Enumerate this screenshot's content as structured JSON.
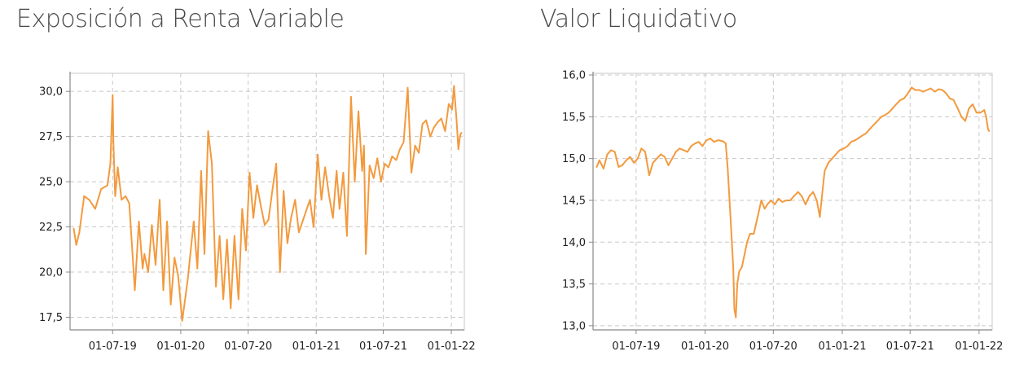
{
  "colors": {
    "line": "#f39a3e",
    "grid": "#c8c8c8",
    "axis": "#888888",
    "text": "#222222"
  },
  "chart_data": [
    {
      "type": "line",
      "title": "Exposición a Renta Variable",
      "xlabel": "",
      "ylabel": "",
      "x_tick_labels": [
        "01-07-19",
        "01-01-20",
        "01-07-20",
        "01-01-21",
        "01-07-21",
        "01-01-22"
      ],
      "y_tick_labels": [
        "17,5",
        "20,0",
        "22,5",
        "25,0",
        "27,5",
        "30,0"
      ],
      "ylim": [
        16.8,
        31.0
      ],
      "grid": true,
      "series": [
        {
          "x": [
            "2019-03-18",
            "2019-03-25",
            "2019-04-02",
            "2019-04-15",
            "2019-04-29",
            "2019-05-15",
            "2019-05-31",
            "2019-06-17",
            "2019-06-25",
            "2019-07-01",
            "2019-07-03",
            "2019-07-08",
            "2019-07-15",
            "2019-07-25",
            "2019-08-05",
            "2019-08-15",
            "2019-08-30",
            "2019-09-10",
            "2019-09-20",
            "2019-09-25",
            "2019-10-05",
            "2019-10-15",
            "2019-10-25",
            "2019-11-05",
            "2019-11-15",
            "2019-11-25",
            "2019-12-05",
            "2019-12-15",
            "2019-12-25",
            "2020-01-05",
            "2020-01-20",
            "2020-02-05",
            "2020-02-15",
            "2020-02-25",
            "2020-03-05",
            "2020-03-15",
            "2020-03-25",
            "2020-04-05",
            "2020-04-15",
            "2020-04-25",
            "2020-05-05",
            "2020-05-15",
            "2020-05-25",
            "2020-06-05",
            "2020-06-15",
            "2020-06-25",
            "2020-07-05",
            "2020-07-15",
            "2020-07-25",
            "2020-08-05",
            "2020-08-15",
            "2020-08-25",
            "2020-09-05",
            "2020-09-15",
            "2020-09-25",
            "2020-10-05",
            "2020-10-15",
            "2020-10-25",
            "2020-11-05",
            "2020-11-15",
            "2020-11-25",
            "2020-12-05",
            "2020-12-15",
            "2020-12-25",
            "2021-01-05",
            "2021-01-15",
            "2021-01-25",
            "2021-02-05",
            "2021-02-15",
            "2021-02-25",
            "2021-03-05",
            "2021-03-15",
            "2021-03-25",
            "2021-04-05",
            "2021-04-15",
            "2021-04-25",
            "2021-05-05",
            "2021-05-10",
            "2021-05-15",
            "2021-05-25",
            "2021-06-05",
            "2021-06-15",
            "2021-06-25",
            "2021-07-05",
            "2021-07-15",
            "2021-07-25",
            "2021-08-05",
            "2021-08-15",
            "2021-08-25",
            "2021-09-05",
            "2021-09-15",
            "2021-09-25",
            "2021-10-05",
            "2021-10-15",
            "2021-10-25",
            "2021-11-05",
            "2021-11-15",
            "2021-11-25",
            "2021-12-05",
            "2021-12-15",
            "2021-12-25",
            "2022-01-03",
            "2022-01-08",
            "2022-01-15",
            "2022-01-20",
            "2022-01-25",
            "2022-01-28"
          ],
          "y": [
            22.4,
            21.5,
            22.2,
            24.2,
            24.0,
            23.5,
            24.6,
            24.8,
            26.0,
            29.8,
            27.2,
            24.2,
            25.8,
            24.0,
            24.2,
            23.8,
            19.0,
            22.8,
            20.2,
            21.0,
            20.0,
            22.6,
            20.4,
            24.0,
            19.0,
            22.8,
            18.2,
            20.8,
            19.8,
            17.3,
            19.6,
            22.8,
            20.2,
            25.6,
            21.0,
            27.8,
            26.0,
            19.2,
            22.0,
            18.5,
            21.8,
            18.0,
            22.0,
            18.5,
            23.5,
            21.2,
            25.5,
            23.0,
            24.8,
            23.6,
            22.6,
            22.9,
            24.6,
            26.0,
            20.0,
            24.5,
            21.6,
            23.0,
            24.0,
            22.2,
            22.8,
            23.4,
            24.0,
            22.5,
            26.5,
            24.0,
            25.8,
            24.2,
            23.0,
            25.6,
            23.5,
            25.5,
            22.0,
            29.7,
            25.0,
            28.9,
            25.6,
            27.0,
            21.0,
            25.9,
            25.2,
            26.3,
            25.0,
            26.0,
            25.8,
            26.4,
            26.2,
            26.8,
            27.2,
            30.2,
            25.5,
            27.0,
            26.6,
            28.2,
            28.4,
            27.5,
            28.0,
            28.3,
            28.5,
            27.8,
            29.3,
            29.0,
            30.3,
            28.4,
            26.8,
            27.6,
            27.7
          ]
        }
      ]
    },
    {
      "type": "line",
      "title": "Valor Liquidativo",
      "xlabel": "",
      "ylabel": "",
      "x_tick_labels": [
        "01-07-19",
        "01-01-20",
        "01-07-20",
        "01-01-21",
        "01-07-21",
        "01-01-22"
      ],
      "y_tick_labels": [
        "13,0",
        "13,5",
        "14,0",
        "14,5",
        "15,0",
        "15,5",
        "16,0"
      ],
      "ylim": [
        12.95,
        16.02
      ],
      "grid": true,
      "series": [
        {
          "x": [
            "2019-03-18",
            "2019-03-25",
            "2019-04-05",
            "2019-04-15",
            "2019-04-25",
            "2019-05-05",
            "2019-05-15",
            "2019-05-25",
            "2019-06-05",
            "2019-06-15",
            "2019-06-25",
            "2019-07-05",
            "2019-07-15",
            "2019-07-25",
            "2019-08-05",
            "2019-08-15",
            "2019-08-25",
            "2019-09-05",
            "2019-09-15",
            "2019-09-25",
            "2019-10-05",
            "2019-10-15",
            "2019-10-25",
            "2019-11-05",
            "2019-11-15",
            "2019-11-25",
            "2019-12-05",
            "2019-12-15",
            "2019-12-25",
            "2020-01-05",
            "2020-01-15",
            "2020-01-25",
            "2020-02-05",
            "2020-02-15",
            "2020-02-20",
            "2020-02-25",
            "2020-03-01",
            "2020-03-05",
            "2020-03-10",
            "2020-03-16",
            "2020-03-19",
            "2020-03-23",
            "2020-03-27",
            "2020-04-01",
            "2020-04-08",
            "2020-04-15",
            "2020-04-22",
            "2020-04-30",
            "2020-05-10",
            "2020-05-20",
            "2020-05-30",
            "2020-06-08",
            "2020-06-15",
            "2020-06-25",
            "2020-07-05",
            "2020-07-15",
            "2020-07-25",
            "2020-08-05",
            "2020-08-15",
            "2020-08-25",
            "2020-09-05",
            "2020-09-15",
            "2020-09-25",
            "2020-10-05",
            "2020-10-15",
            "2020-10-25",
            "2020-11-02",
            "2020-11-09",
            "2020-11-15",
            "2020-11-25",
            "2020-12-05",
            "2020-12-15",
            "2020-12-25",
            "2021-01-05",
            "2021-01-15",
            "2021-01-25",
            "2021-02-05",
            "2021-02-15",
            "2021-02-25",
            "2021-03-05",
            "2021-03-15",
            "2021-03-25",
            "2021-04-05",
            "2021-04-15",
            "2021-04-25",
            "2021-05-05",
            "2021-05-15",
            "2021-05-25",
            "2021-06-05",
            "2021-06-15",
            "2021-06-25",
            "2021-07-05",
            "2021-07-15",
            "2021-07-25",
            "2021-08-05",
            "2021-08-15",
            "2021-08-25",
            "2021-09-05",
            "2021-09-15",
            "2021-09-25",
            "2021-10-05",
            "2021-10-15",
            "2021-10-25",
            "2021-11-05",
            "2021-11-15",
            "2021-11-25",
            "2021-12-05",
            "2021-12-15",
            "2021-12-25",
            "2022-01-05",
            "2022-01-15",
            "2022-01-20",
            "2022-01-25",
            "2022-01-28"
          ],
          "y": [
            14.9,
            14.98,
            14.88,
            15.05,
            15.1,
            15.08,
            14.9,
            14.92,
            14.98,
            15.02,
            14.95,
            15.0,
            15.12,
            15.08,
            14.8,
            14.95,
            15.0,
            15.05,
            15.02,
            14.92,
            15.0,
            15.08,
            15.12,
            15.1,
            15.08,
            15.15,
            15.18,
            15.2,
            15.15,
            15.22,
            15.24,
            15.2,
            15.22,
            15.21,
            15.2,
            15.18,
            14.9,
            14.6,
            14.2,
            13.7,
            13.2,
            13.1,
            13.5,
            13.65,
            13.7,
            13.85,
            14.0,
            14.1,
            14.1,
            14.3,
            14.5,
            14.4,
            14.45,
            14.5,
            14.45,
            14.52,
            14.48,
            14.5,
            14.5,
            14.55,
            14.6,
            14.55,
            14.45,
            14.55,
            14.6,
            14.5,
            14.3,
            14.6,
            14.85,
            14.95,
            15.0,
            15.05,
            15.1,
            15.12,
            15.15,
            15.2,
            15.22,
            15.25,
            15.28,
            15.3,
            15.35,
            15.4,
            15.45,
            15.5,
            15.52,
            15.55,
            15.6,
            15.65,
            15.7,
            15.72,
            15.78,
            15.85,
            15.82,
            15.82,
            15.8,
            15.82,
            15.84,
            15.8,
            15.83,
            15.82,
            15.78,
            15.72,
            15.7,
            15.6,
            15.5,
            15.45,
            15.6,
            15.65,
            15.55,
            15.55,
            15.58,
            15.5,
            15.35,
            15.33
          ]
        }
      ]
    }
  ]
}
